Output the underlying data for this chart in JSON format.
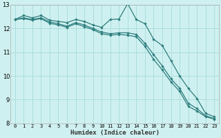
{
  "xlabel": "Humidex (Indice chaleur)",
  "background_color": "#cff0f0",
  "grid_color": "#aadddd",
  "line_color": "#2d7d7d",
  "xlim": [
    -0.5,
    23.5
  ],
  "ylim": [
    8,
    13
  ],
  "yticks": [
    8,
    9,
    10,
    11,
    12,
    13
  ],
  "xticks": [
    0,
    1,
    2,
    3,
    4,
    5,
    6,
    7,
    8,
    9,
    10,
    11,
    12,
    13,
    14,
    15,
    16,
    17,
    18,
    19,
    20,
    21,
    22,
    23
  ],
  "series": [
    [
      12.38,
      12.55,
      12.45,
      12.55,
      12.35,
      12.3,
      12.25,
      12.38,
      12.3,
      12.15,
      12.05,
      12.38,
      12.4,
      13.05,
      12.38,
      12.2,
      11.55,
      11.28,
      10.65,
      10.0,
      9.48,
      9.05,
      8.42,
      8.28
    ],
    [
      12.38,
      12.45,
      12.38,
      12.45,
      12.28,
      12.2,
      12.1,
      12.25,
      12.15,
      12.0,
      11.85,
      11.78,
      11.82,
      11.82,
      11.75,
      11.38,
      10.9,
      10.42,
      9.88,
      9.48,
      8.85,
      8.62,
      8.32,
      8.2
    ],
    [
      12.38,
      12.42,
      12.35,
      12.42,
      12.22,
      12.15,
      12.05,
      12.2,
      12.08,
      11.95,
      11.78,
      11.72,
      11.75,
      11.72,
      11.65,
      11.25,
      10.7,
      10.25,
      9.75,
      9.35,
      8.72,
      8.52,
      8.28,
      8.18
    ]
  ]
}
